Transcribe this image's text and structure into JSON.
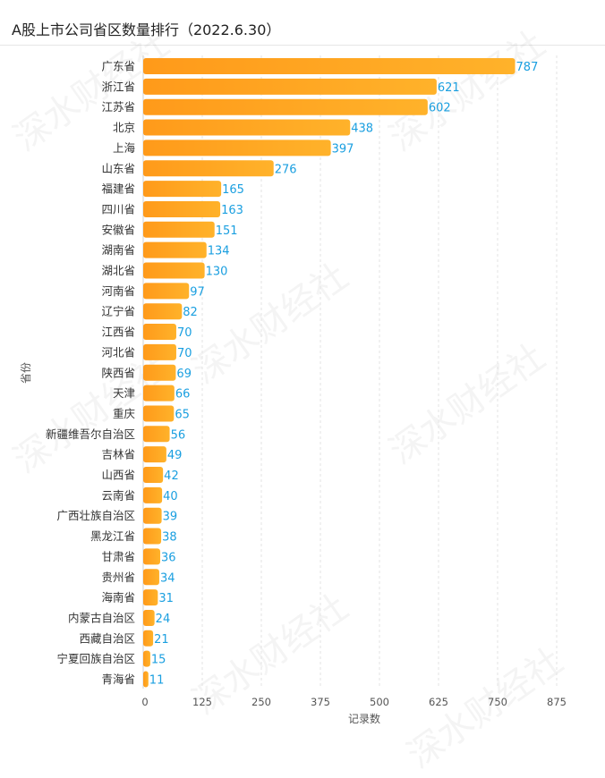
{
  "title": "A股上市公司省区数量排行（2022.6.30）",
  "watermark": "深水财经社",
  "colors": {
    "bar_start": "#ff9a1a",
    "bar_end": "#ffb22a",
    "value_label": "#1a9fe0",
    "grid": "#e3e3e3"
  },
  "chart_data": {
    "type": "bar",
    "orientation": "horizontal",
    "title": "A股上市公司省区数量排行（2022.6.30）",
    "ylabel": "省份",
    "xlabel": "记录数",
    "xlim": [
      0,
      875
    ],
    "xticks": [
      0,
      125,
      250,
      375,
      500,
      625,
      750,
      875
    ],
    "grid": true,
    "categories": [
      "广东省",
      "浙江省",
      "江苏省",
      "北京",
      "上海",
      "山东省",
      "福建省",
      "四川省",
      "安徽省",
      "湖南省",
      "湖北省",
      "河南省",
      "辽宁省",
      "江西省",
      "河北省",
      "陕西省",
      "天津",
      "重庆",
      "新疆维吾尔自治区",
      "吉林省",
      "山西省",
      "云南省",
      "广西壮族自治区",
      "黑龙江省",
      "甘肃省",
      "贵州省",
      "海南省",
      "内蒙古自治区",
      "西藏自治区",
      "宁夏回族自治区",
      "青海省"
    ],
    "values": [
      787,
      621,
      602,
      438,
      397,
      276,
      165,
      163,
      151,
      134,
      130,
      97,
      82,
      70,
      70,
      69,
      66,
      65,
      56,
      49,
      42,
      40,
      39,
      38,
      36,
      34,
      31,
      24,
      21,
      15,
      11
    ]
  }
}
